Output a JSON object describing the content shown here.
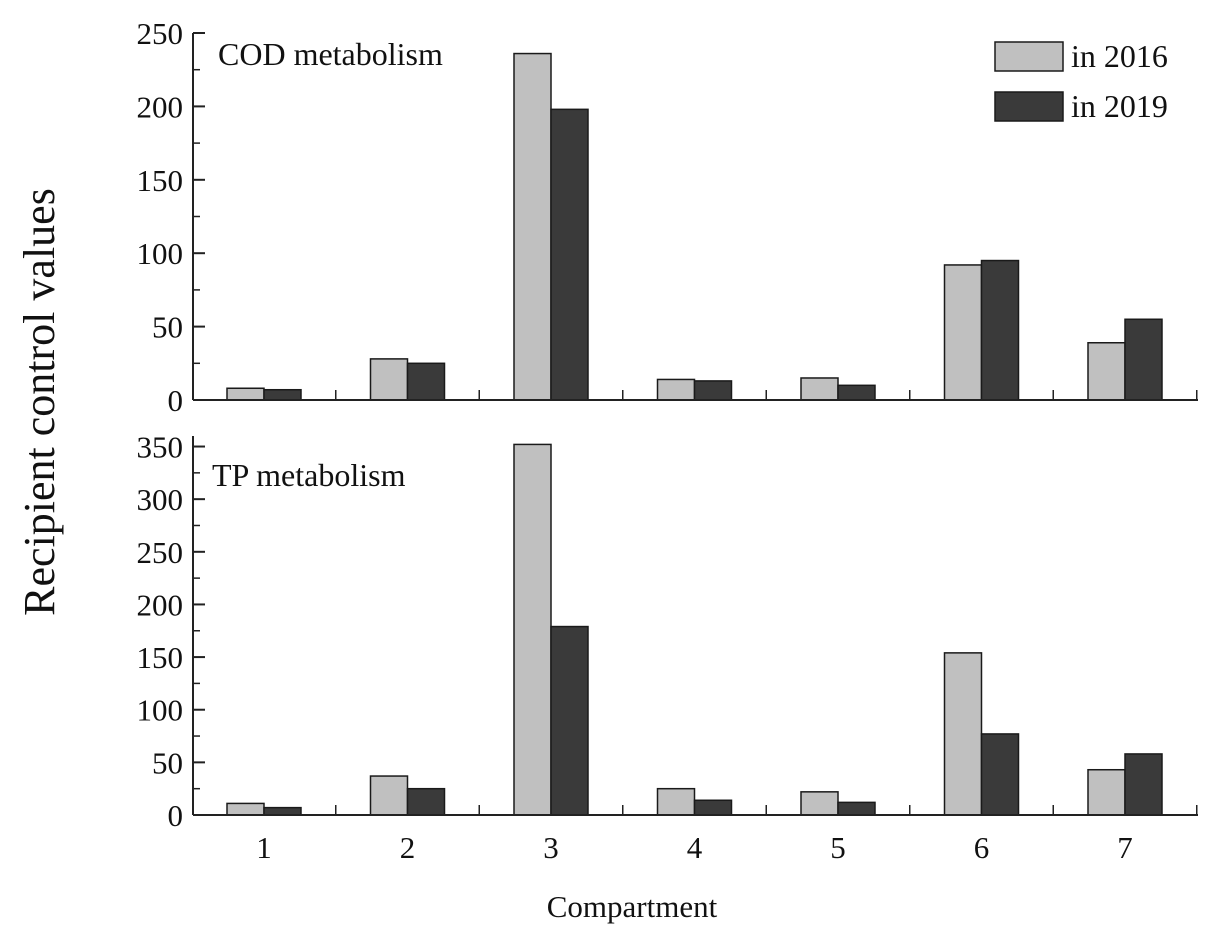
{
  "chart_data": {
    "type": "bar",
    "xlabel": "Compartment",
    "ylabel": "Recipient control values",
    "categories": [
      "1",
      "2",
      "3",
      "4",
      "5",
      "6",
      "7"
    ],
    "legend": [
      {
        "name": "in 2016",
        "color": "#c0c0c0"
      },
      {
        "name": "in 2019",
        "color": "#3a3a3a"
      }
    ],
    "panels": [
      {
        "title": "COD metabolism",
        "ylim": [
          0,
          250
        ],
        "yticks": [
          0,
          50,
          100,
          150,
          200,
          250
        ],
        "series": [
          {
            "name": "in 2016",
            "values": [
              8,
              28,
              236,
              14,
              15,
              92,
              39
            ]
          },
          {
            "name": "in 2019",
            "values": [
              7,
              25,
              198,
              13,
              10,
              95,
              55
            ]
          }
        ]
      },
      {
        "title": "TP metabolism",
        "ylim": [
          0,
          360
        ],
        "yticks": [
          0,
          50,
          100,
          150,
          200,
          250,
          300,
          350
        ],
        "series": [
          {
            "name": "in 2016",
            "values": [
              11,
              37,
              352,
              25,
              22,
              154,
              43
            ]
          },
          {
            "name": "in 2019",
            "values": [
              7,
              25,
              179,
              14,
              12,
              77,
              58
            ]
          }
        ]
      }
    ]
  }
}
